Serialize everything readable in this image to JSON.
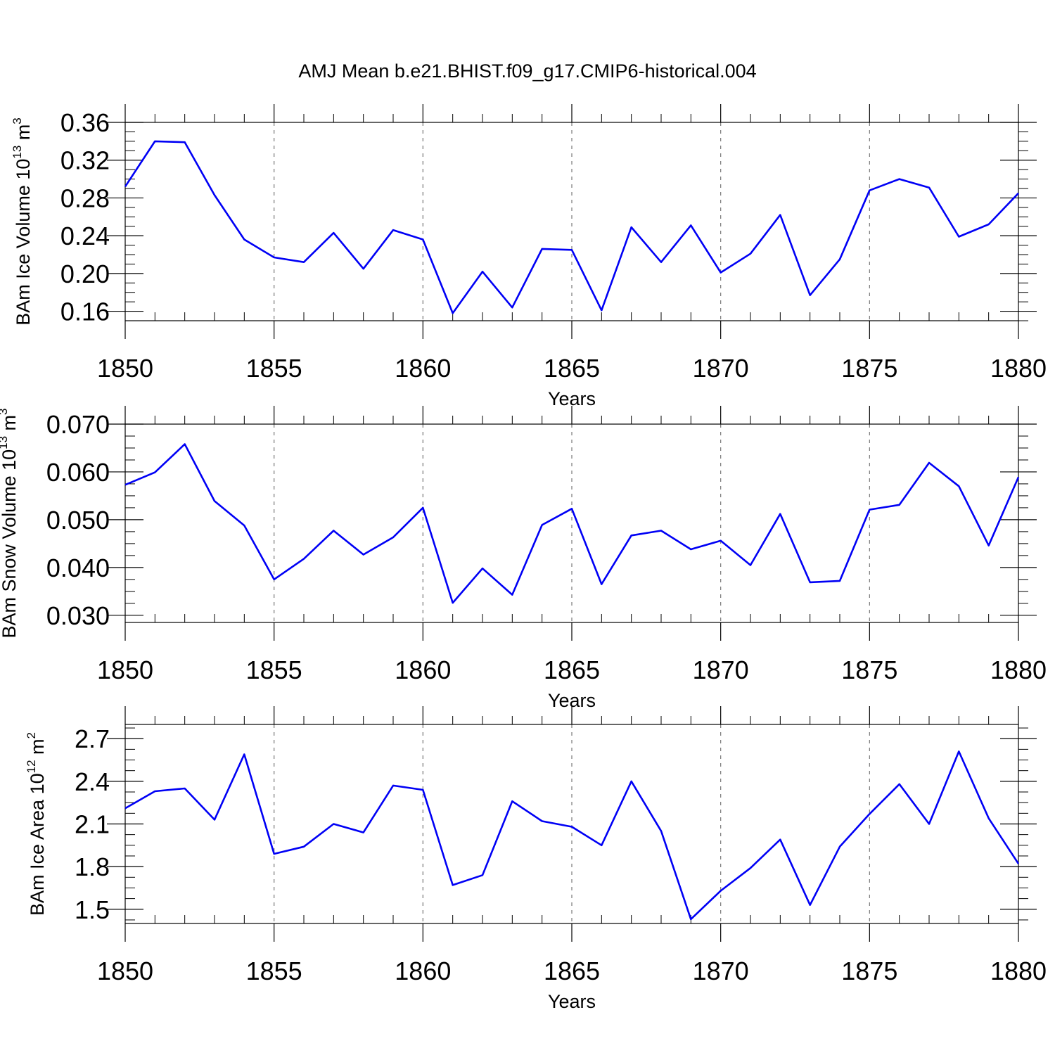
{
  "figure_title": "AMJ Mean b.e21.BHIST.f09_g17.CMIP6-historical.004",
  "colors": {
    "series": "#0000f5",
    "grid": "#777777",
    "axis": "#000000"
  },
  "chart_data": [
    {
      "type": "line",
      "title": "AMJ Mean b.e21.BHIST.f09_g17.CMIP6-historical.004",
      "xlabel": "Years",
      "ylabel": {
        "main": "BAm Ice Volume 10",
        "exp1": "13",
        "mid": " m",
        "exp2": "3"
      },
      "xlim": [
        1850,
        1880
      ],
      "ylim": [
        0.15,
        0.36
      ],
      "xticks": [
        "1850",
        "1855",
        "1860",
        "1865",
        "1870",
        "1875",
        "1880"
      ],
      "yticks": [
        "0.16",
        "0.20",
        "0.24",
        "0.28",
        "0.32",
        "0.36"
      ],
      "grid": "vertical-dashed",
      "x": [
        1850,
        1851,
        1852,
        1853,
        1854,
        1855,
        1856,
        1857,
        1858,
        1859,
        1860,
        1861,
        1862,
        1863,
        1864,
        1865,
        1866,
        1867,
        1868,
        1869,
        1870,
        1871,
        1872,
        1873,
        1874,
        1875,
        1876,
        1877,
        1878,
        1879,
        1880
      ],
      "values": [
        0.292,
        0.34,
        0.339,
        0.283,
        0.236,
        0.217,
        0.212,
        0.243,
        0.205,
        0.246,
        0.236,
        0.158,
        0.202,
        0.164,
        0.226,
        0.225,
        0.161,
        0.249,
        0.212,
        0.251,
        0.201,
        0.221,
        0.262,
        0.177,
        0.215,
        0.288,
        0.3,
        0.291,
        0.239,
        0.252,
        0.285
      ]
    },
    {
      "type": "line",
      "xlabel": "Years",
      "ylabel": {
        "main": "BAm Snow Volume 10",
        "exp1": "13",
        "mid": " m",
        "exp2": "3"
      },
      "xlim": [
        1850,
        1880
      ],
      "ylim": [
        0.0285,
        0.07
      ],
      "xticks": [
        "1850",
        "1855",
        "1860",
        "1865",
        "1870",
        "1875",
        "1880"
      ],
      "yticks": [
        "0.030",
        "0.040",
        "0.050",
        "0.060",
        "0.070"
      ],
      "grid": "vertical-dashed",
      "x": [
        1850,
        1851,
        1852,
        1853,
        1854,
        1855,
        1856,
        1857,
        1858,
        1859,
        1860,
        1861,
        1862,
        1863,
        1864,
        1865,
        1866,
        1867,
        1868,
        1869,
        1870,
        1871,
        1872,
        1873,
        1874,
        1875,
        1876,
        1877,
        1878,
        1879,
        1880
      ],
      "values": [
        0.0573,
        0.0599,
        0.0658,
        0.0539,
        0.0488,
        0.0375,
        0.0418,
        0.0477,
        0.0427,
        0.0463,
        0.0525,
        0.0326,
        0.0398,
        0.0343,
        0.0489,
        0.0523,
        0.0365,
        0.0467,
        0.0477,
        0.0438,
        0.0456,
        0.0405,
        0.0512,
        0.0369,
        0.0372,
        0.0521,
        0.0531,
        0.0619,
        0.057,
        0.0446,
        0.0589
      ]
    },
    {
      "type": "line",
      "xlabel": "Years",
      "ylabel": {
        "main": "BAm Ice Area 10",
        "exp1": "12",
        "mid": " m",
        "exp2": "2"
      },
      "xlim": [
        1850,
        1880
      ],
      "ylim": [
        1.4,
        2.8
      ],
      "xticks": [
        "1850",
        "1855",
        "1860",
        "1865",
        "1870",
        "1875",
        "1880"
      ],
      "yticks": [
        "1.5",
        "1.8",
        "2.1",
        "2.4",
        "2.7"
      ],
      "grid": "vertical-dashed",
      "x": [
        1850,
        1851,
        1852,
        1853,
        1854,
        1855,
        1856,
        1857,
        1858,
        1859,
        1860,
        1861,
        1862,
        1863,
        1864,
        1865,
        1866,
        1867,
        1868,
        1869,
        1870,
        1871,
        1872,
        1873,
        1874,
        1875,
        1876,
        1877,
        1878,
        1879,
        1880
      ],
      "values": [
        2.21,
        2.33,
        2.35,
        2.13,
        2.59,
        1.89,
        1.94,
        2.1,
        2.04,
        2.37,
        2.34,
        1.67,
        1.74,
        2.26,
        2.12,
        2.08,
        1.95,
        2.4,
        2.05,
        1.43,
        1.63,
        1.79,
        1.99,
        1.53,
        1.94,
        2.17,
        2.38,
        2.1,
        2.61,
        2.14,
        1.82
      ]
    }
  ]
}
